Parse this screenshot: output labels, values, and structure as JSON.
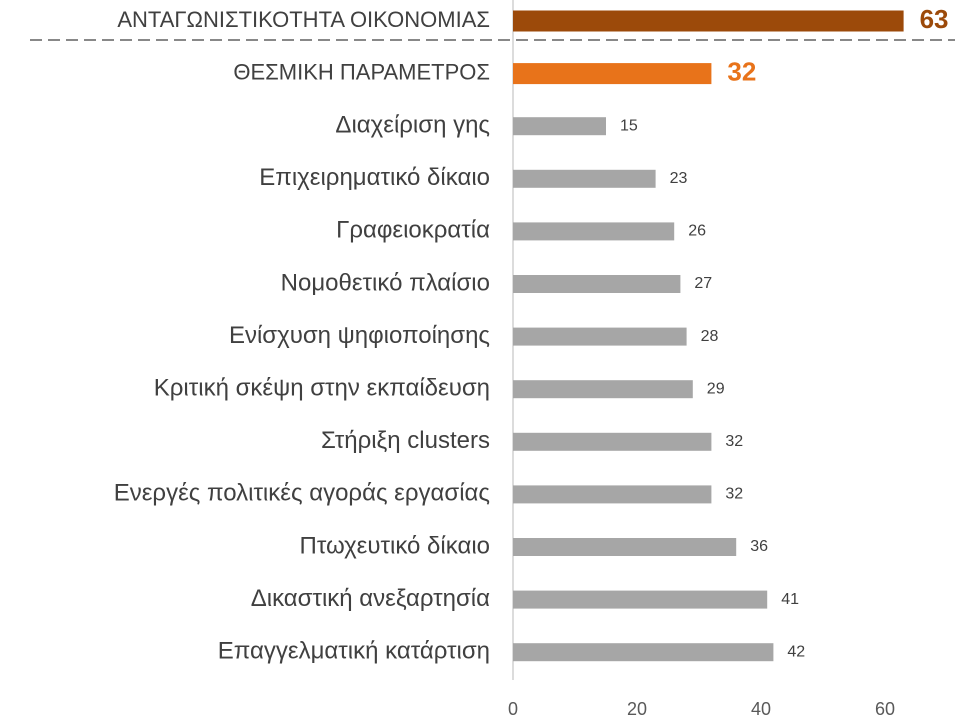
{
  "chart_data": {
    "type": "barh",
    "categories": [
      "ΑΝΤΑΓΩΝΙΣΤΙΚΟΤΗΤΑ ΟΙΚΟΝΟΜΙΑΣ",
      "ΘΕΣΜΙΚΗ ΠΑΡΑΜΕΤΡΟΣ",
      "Διαχείριση γης",
      "Επιχειρηματικό δίκαιο",
      "Γραφειοκρατία",
      "Νομοθετικό πλαίσιο",
      "Ενίσχυση ψηφιοποίησης",
      "Κριτική σκέψη στην εκπαίδευση",
      "Στήριξη clusters",
      "Ενεργές πολιτικές αγοράς εργασίας",
      "Πτωχευτικό δίκαιο",
      "Δικαστική ανεξαρτησία",
      "Επαγγελματική κατάρτιση"
    ],
    "values": [
      63,
      32,
      15,
      23,
      26,
      27,
      28,
      29,
      32,
      32,
      36,
      41,
      42
    ],
    "colors": [
      "#9c4a0a",
      "#e8731a",
      "#a6a6a6",
      "#a6a6a6",
      "#a6a6a6",
      "#a6a6a6",
      "#a6a6a6",
      "#a6a6a6",
      "#a6a6a6",
      "#a6a6a6",
      "#a6a6a6",
      "#a6a6a6",
      "#a6a6a6"
    ],
    "xlim": [
      0,
      60
    ],
    "xticks": [
      0,
      20,
      40,
      60
    ]
  }
}
